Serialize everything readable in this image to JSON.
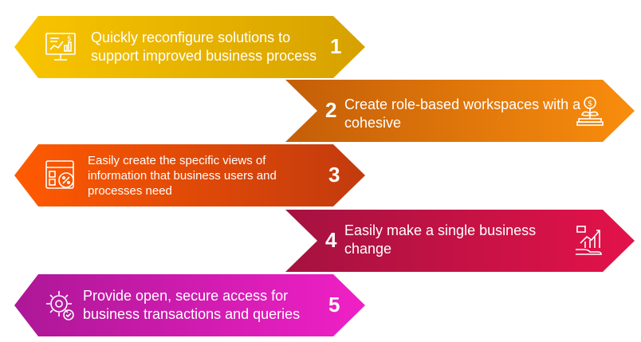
{
  "steps": [
    {
      "number": "1",
      "text": "Quickly reconfigure solutions to support improved business process",
      "icon": "dashboard-icon",
      "colors": [
        "#f9c500",
        "#d9a000"
      ]
    },
    {
      "number": "2",
      "text": "Create role-based workspaces with a cohesive",
      "icon": "money-growth-icon",
      "colors": [
        "#c8620a",
        "#f58b0d"
      ]
    },
    {
      "number": "3",
      "text": "Easily create the specific views of information that business users and processes need",
      "icon": "calculator-icon",
      "colors": [
        "#ff5a00",
        "#c73d0c"
      ]
    },
    {
      "number": "4",
      "text": "Easily make a single business change",
      "icon": "hand-chart-icon",
      "colors": [
        "#a8123e",
        "#e0124a"
      ]
    },
    {
      "number": "5",
      "text": "Provide open, secure access for business transactions and queries",
      "icon": "gear-settings-icon",
      "colors": [
        "#b0169a",
        "#ef1fc4"
      ]
    }
  ]
}
